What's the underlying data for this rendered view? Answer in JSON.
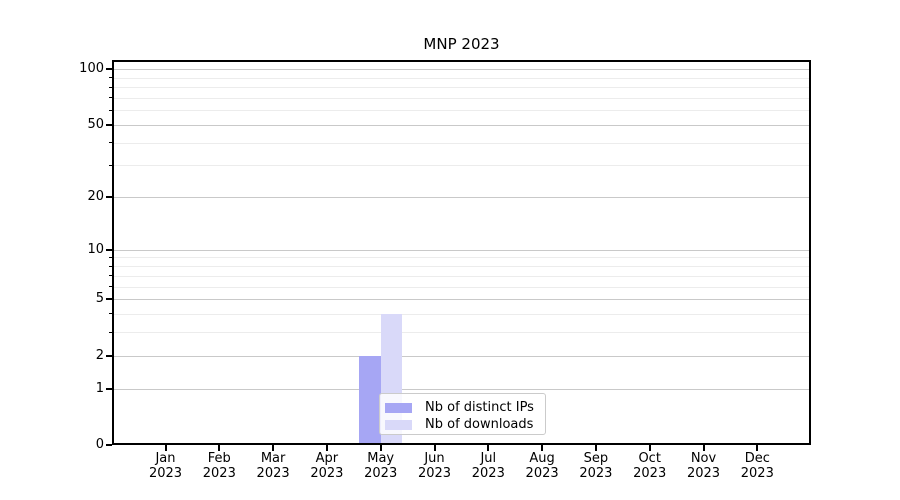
{
  "colors": {
    "background": "#ffffff",
    "bar_distinct_ips": "#a6a6f4",
    "bar_downloads": "#d9d9f9",
    "grid_major": "#c9c9c9",
    "grid_minor": "#ececec",
    "spine": "#000000",
    "legend_border": "#cbcbcb",
    "text": "#000000"
  },
  "chart_data": {
    "type": "bar",
    "title": "MNP 2023",
    "categories": [
      "Jan 2023",
      "Feb 2023",
      "Mar 2023",
      "Apr 2023",
      "May 2023",
      "Jun 2023",
      "Jul 2023",
      "Aug 2023",
      "Sep 2023",
      "Oct 2023",
      "Nov 2023",
      "Dec 2023"
    ],
    "category_months": [
      "Jan",
      "Feb",
      "Mar",
      "Apr",
      "May",
      "Jun",
      "Jul",
      "Aug",
      "Sep",
      "Oct",
      "Nov",
      "Dec"
    ],
    "category_year": "2023",
    "series": [
      {
        "name": "Nb of distinct IPs",
        "color": "#a6a6f4",
        "values": [
          0,
          0,
          0,
          0,
          2,
          0,
          0,
          0,
          0,
          0,
          0,
          0
        ]
      },
      {
        "name": "Nb of downloads",
        "color": "#d9d9f9",
        "values": [
          0,
          0,
          0,
          0,
          4,
          0,
          0,
          0,
          0,
          0,
          0,
          0
        ]
      }
    ],
    "xlabel": "",
    "ylabel": "",
    "y_axis": {
      "scale": "log1p",
      "tick_values": [
        0,
        1,
        2,
        5,
        10,
        20,
        50,
        100
      ],
      "tick_labels": [
        "0",
        "1",
        "2",
        "5",
        "10",
        "20",
        "50",
        "100"
      ],
      "minor_tick_values": [
        3,
        4,
        6,
        7,
        8,
        9,
        30,
        40,
        60,
        70,
        80,
        90
      ],
      "ylim": [
        0,
        112
      ]
    },
    "grid": "both",
    "legend_position": "inside lower-center"
  }
}
